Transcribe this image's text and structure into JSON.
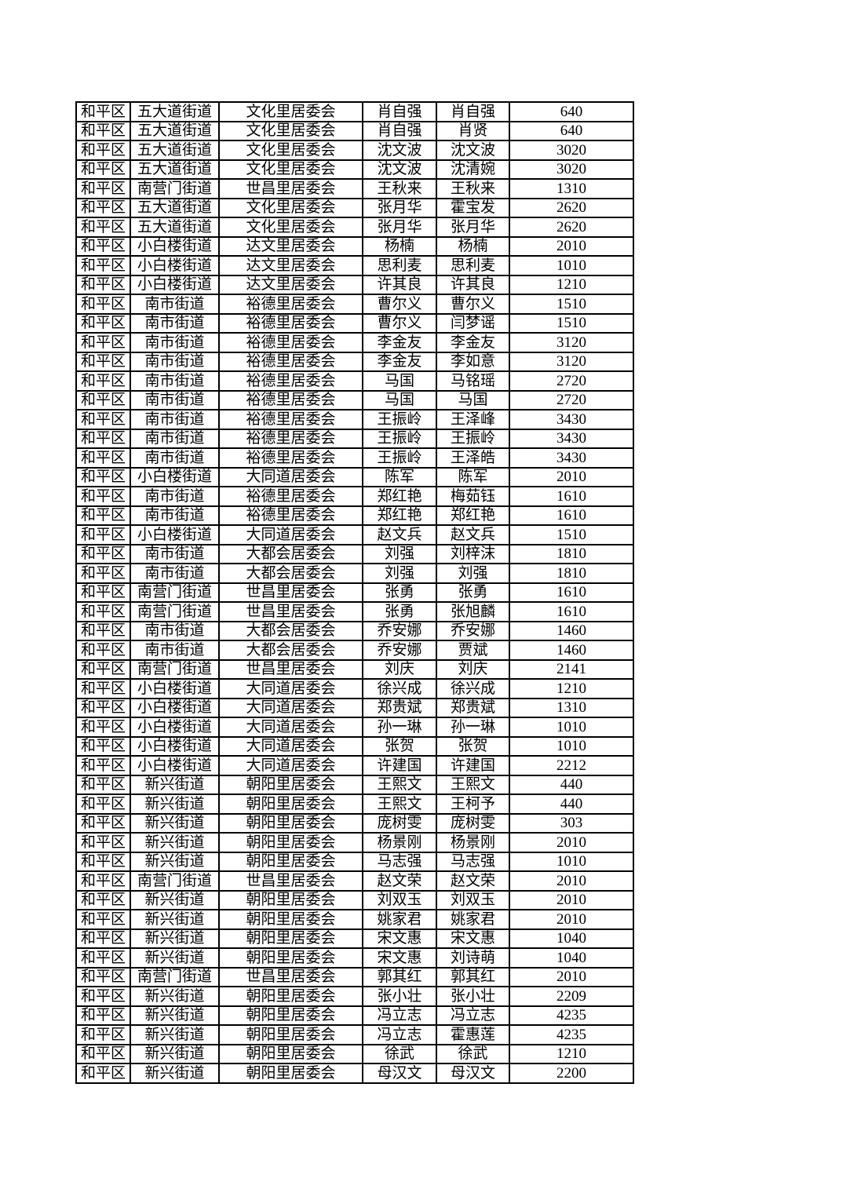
{
  "table": {
    "rows": [
      [
        "和平区",
        "五大道街道",
        "文化里居委会",
        "肖自强",
        "肖自强",
        "640"
      ],
      [
        "和平区",
        "五大道街道",
        "文化里居委会",
        "肖自强",
        "肖贤",
        "640"
      ],
      [
        "和平区",
        "五大道街道",
        "文化里居委会",
        "沈文波",
        "沈文波",
        "3020"
      ],
      [
        "和平区",
        "五大道街道",
        "文化里居委会",
        "沈文波",
        "沈清婉",
        "3020"
      ],
      [
        "和平区",
        "南营门街道",
        "世昌里居委会",
        "王秋来",
        "王秋来",
        "1310"
      ],
      [
        "和平区",
        "五大道街道",
        "文化里居委会",
        "张月华",
        "霍宝发",
        "2620"
      ],
      [
        "和平区",
        "五大道街道",
        "文化里居委会",
        "张月华",
        "张月华",
        "2620"
      ],
      [
        "和平区",
        "小白楼街道",
        "达文里居委会",
        "杨楠",
        "杨楠",
        "2010"
      ],
      [
        "和平区",
        "小白楼街道",
        "达文里居委会",
        "思利麦",
        "思利麦",
        "1010"
      ],
      [
        "和平区",
        "小白楼街道",
        "达文里居委会",
        "许其良",
        "许其良",
        "1210"
      ],
      [
        "和平区",
        "南市街道",
        "裕德里居委会",
        "曹尔义",
        "曹尔义",
        "1510"
      ],
      [
        "和平区",
        "南市街道",
        "裕德里居委会",
        "曹尔义",
        "闫梦谣",
        "1510"
      ],
      [
        "和平区",
        "南市街道",
        "裕德里居委会",
        "李金友",
        "李金友",
        "3120"
      ],
      [
        "和平区",
        "南市街道",
        "裕德里居委会",
        "李金友",
        "李如意",
        "3120"
      ],
      [
        "和平区",
        "南市街道",
        "裕德里居委会",
        "马国",
        "马铭瑶",
        "2720"
      ],
      [
        "和平区",
        "南市街道",
        "裕德里居委会",
        "马国",
        "马国",
        "2720"
      ],
      [
        "和平区",
        "南市街道",
        "裕德里居委会",
        "王振岭",
        "王泽峰",
        "3430"
      ],
      [
        "和平区",
        "南市街道",
        "裕德里居委会",
        "王振岭",
        "王振岭",
        "3430"
      ],
      [
        "和平区",
        "南市街道",
        "裕德里居委会",
        "王振岭",
        "王泽皓",
        "3430"
      ],
      [
        "和平区",
        "小白楼街道",
        "大同道居委会",
        "陈军",
        "陈军",
        "2010"
      ],
      [
        "和平区",
        "南市街道",
        "裕德里居委会",
        "郑红艳",
        "梅茹钰",
        "1610"
      ],
      [
        "和平区",
        "南市街道",
        "裕德里居委会",
        "郑红艳",
        "郑红艳",
        "1610"
      ],
      [
        "和平区",
        "小白楼街道",
        "大同道居委会",
        "赵文兵",
        "赵文兵",
        "1510"
      ],
      [
        "和平区",
        "南市街道",
        "大都会居委会",
        "刘强",
        "刘梓沫",
        "1810"
      ],
      [
        "和平区",
        "南市街道",
        "大都会居委会",
        "刘强",
        "刘强",
        "1810"
      ],
      [
        "和平区",
        "南营门街道",
        "世昌里居委会",
        "张勇",
        "张勇",
        "1610"
      ],
      [
        "和平区",
        "南营门街道",
        "世昌里居委会",
        "张勇",
        "张旭麟",
        "1610"
      ],
      [
        "和平区",
        "南市街道",
        "大都会居委会",
        "乔安娜",
        "乔安娜",
        "1460"
      ],
      [
        "和平区",
        "南市街道",
        "大都会居委会",
        "乔安娜",
        "贾斌",
        "1460"
      ],
      [
        "和平区",
        "南营门街道",
        "世昌里居委会",
        "刘庆",
        "刘庆",
        "2141"
      ],
      [
        "和平区",
        "小白楼街道",
        "大同道居委会",
        "徐兴成",
        "徐兴成",
        "1210"
      ],
      [
        "和平区",
        "小白楼街道",
        "大同道居委会",
        "郑贵斌",
        "郑贵斌",
        "1310"
      ],
      [
        "和平区",
        "小白楼街道",
        "大同道居委会",
        "孙一琳",
        "孙一琳",
        "1010"
      ],
      [
        "和平区",
        "小白楼街道",
        "大同道居委会",
        "张贺",
        "张贺",
        "1010"
      ],
      [
        "和平区",
        "小白楼街道",
        "大同道居委会",
        "许建国",
        "许建国",
        "2212"
      ],
      [
        "和平区",
        "新兴街道",
        "朝阳里居委会",
        "王熙文",
        "王熙文",
        "440"
      ],
      [
        "和平区",
        "新兴街道",
        "朝阳里居委会",
        "王熙文",
        "王柯予",
        "440"
      ],
      [
        "和平区",
        "新兴街道",
        "朝阳里居委会",
        "庞树雯",
        "庞树雯",
        "303"
      ],
      [
        "和平区",
        "新兴街道",
        "朝阳里居委会",
        "杨景刚",
        "杨景刚",
        "2010"
      ],
      [
        "和平区",
        "新兴街道",
        "朝阳里居委会",
        "马志强",
        "马志强",
        "1010"
      ],
      [
        "和平区",
        "南营门街道",
        "世昌里居委会",
        "赵文荣",
        "赵文荣",
        "2010"
      ],
      [
        "和平区",
        "新兴街道",
        "朝阳里居委会",
        "刘双玉",
        "刘双玉",
        "2010"
      ],
      [
        "和平区",
        "新兴街道",
        "朝阳里居委会",
        "姚家君",
        "姚家君",
        "2010"
      ],
      [
        "和平区",
        "新兴街道",
        "朝阳里居委会",
        "宋文惠",
        "宋文惠",
        "1040"
      ],
      [
        "和平区",
        "新兴街道",
        "朝阳里居委会",
        "宋文惠",
        "刘诗萌",
        "1040"
      ],
      [
        "和平区",
        "南营门街道",
        "世昌里居委会",
        "郭其红",
        "郭其红",
        "2010"
      ],
      [
        "和平区",
        "新兴街道",
        "朝阳里居委会",
        "张小壮",
        "张小壮",
        "2209"
      ],
      [
        "和平区",
        "新兴街道",
        "朝阳里居委会",
        "冯立志",
        "冯立志",
        "4235"
      ],
      [
        "和平区",
        "新兴街道",
        "朝阳里居委会",
        "冯立志",
        "霍惠莲",
        "4235"
      ],
      [
        "和平区",
        "新兴街道",
        "朝阳里居委会",
        "徐武",
        "徐武",
        "1210"
      ],
      [
        "和平区",
        "新兴街道",
        "朝阳里居委会",
        "母汉文",
        "母汉文",
        "2200"
      ]
    ],
    "colors": {
      "border": "#000000",
      "text": "#000000",
      "background": "#ffffff"
    }
  }
}
